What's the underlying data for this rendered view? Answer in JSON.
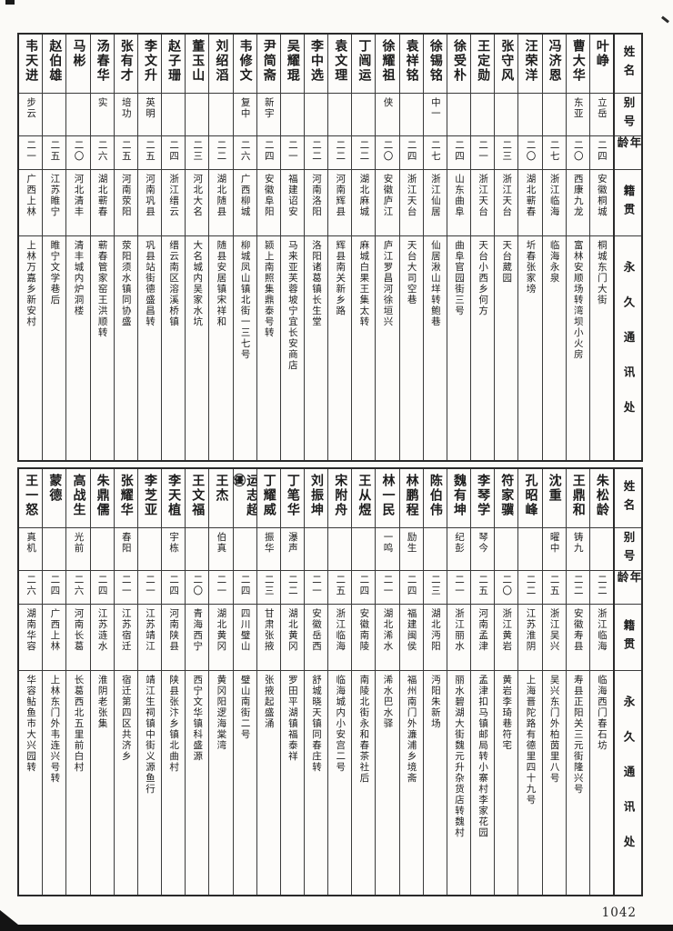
{
  "page_number": "1042",
  "headers": {
    "name": "姓名",
    "alias": "别号",
    "age": "年龄",
    "native": "籍贯",
    "address": "永久通讯处"
  },
  "table_top": {
    "entries": [
      {
        "name": "叶峥",
        "alias": "立岳",
        "age": "二四",
        "native_place": "安徽桐城",
        "address": "桐城东门大街"
      },
      {
        "name": "曹大华",
        "alias": "东亚",
        "age": "二〇",
        "native_place": "西康九龙",
        "address": "富林安顺场转湾坝小火房"
      },
      {
        "name": "冯济恩",
        "alias": "",
        "age": "二七",
        "native_place": "浙江临海",
        "address": "临海永泉"
      },
      {
        "name": "汪荣洋",
        "alias": "",
        "age": "二〇",
        "native_place": "湖北蕲春",
        "address": "圻春张家塝"
      },
      {
        "name": "张守风",
        "alias": "",
        "age": "二三",
        "native_place": "浙江天台",
        "address": "天台葳园"
      },
      {
        "name": "王定勋",
        "alias": "",
        "age": "二一",
        "native_place": "浙江天台",
        "address": "天台小西乡何方"
      },
      {
        "name": "徐受朴",
        "alias": "",
        "age": "二四",
        "native_place": "山东曲阜",
        "address": "曲阜官园街三号"
      },
      {
        "name": "徐锡铭",
        "alias": "中一",
        "age": "二七",
        "native_place": "浙江仙居",
        "address": "仙居湫山垟转鲍巷"
      },
      {
        "name": "袁祥铭",
        "alias": "",
        "age": "二四",
        "native_place": "浙江天台",
        "address": "天台大司空巷"
      },
      {
        "name": "徐耀祖",
        "alias": "侠",
        "age": "二〇",
        "native_place": "安徽庐江",
        "address": "庐江罗昌河徐垣兴"
      },
      {
        "name": "丁闿运",
        "alias": "",
        "age": "二二",
        "native_place": "湖北麻城",
        "address": "麻城白果王集太转"
      },
      {
        "name": "袁文理",
        "alias": "",
        "age": "二二",
        "native_place": "河南辉县",
        "address": "辉县南关新乡路"
      },
      {
        "name": "李中选",
        "alias": "",
        "age": "二二",
        "native_place": "河南洛阳",
        "address": "洛阳诸葛镇长生堂"
      },
      {
        "name": "吴耀琨",
        "alias": "",
        "age": "二一",
        "native_place": "福建诏安",
        "address": "马来亚芙蓉坡宁宜长安商店"
      },
      {
        "name": "尹简斋",
        "alias": "新宇",
        "age": "二四",
        "native_place": "安徽阜阳",
        "address": "颍上南照集鼎泰号转"
      },
      {
        "name": "韦修文",
        "alias": "复中",
        "age": "二六",
        "native_place": "广西柳城",
        "address": "柳城凤山镇北街一三七号"
      },
      {
        "name": "刘绍滔",
        "alias": "",
        "age": "二二",
        "native_place": "湖北随县",
        "address": "随县安居镇宋祥和"
      },
      {
        "name": "董玉山",
        "alias": "",
        "age": "二三",
        "native_place": "河北大名",
        "address": "大名城内吴家水坑"
      },
      {
        "name": "赵子珊",
        "alias": "",
        "age": "二四",
        "native_place": "浙江缙云",
        "address": "缙云南区溶溪桥镇"
      },
      {
        "name": "李文升",
        "alias": "英明",
        "age": "二五",
        "native_place": "河南巩县",
        "address": "巩县站街德盛昌转"
      },
      {
        "name": "张有才",
        "alias": "培功",
        "age": "二五",
        "native_place": "河南荥阳",
        "address": "荥阳须水镇同协盛"
      },
      {
        "name": "汤春华",
        "alias": "实",
        "age": "二六",
        "native_place": "湖北蕲春",
        "address": "蕲春管家窑王洪顺转"
      },
      {
        "name": "马彬",
        "alias": "",
        "age": "二〇",
        "native_place": "河北清丰",
        "address": "清丰城内炉洞楼"
      },
      {
        "name": "赵伯雄",
        "alias": "",
        "age": "二五",
        "native_place": "江苏睢宁",
        "address": "睢宁文学巷后"
      },
      {
        "name": "韦天进",
        "alias": "步云",
        "age": "二一",
        "native_place": "广西上林",
        "address": "上林万嘉乡新安村"
      }
    ]
  },
  "table_bottom": {
    "entries": [
      {
        "name": "朱松龄",
        "alias": "",
        "age": "二二",
        "native_place": "浙江临海",
        "address": "临海西门春石坊"
      },
      {
        "name": "王鼎和",
        "alias": "铸九",
        "age": "二二",
        "native_place": "安徽寿县",
        "address": "寿县正阳关三元街隆兴号"
      },
      {
        "name": "沈重",
        "alias": "曜中",
        "age": "二五",
        "native_place": "浙江吴兴",
        "address": "吴兴东门外柏茵里八号"
      },
      {
        "name": "孔昭峰",
        "alias": "",
        "age": "二二",
        "native_place": "江苏淮阴",
        "address": "上海晋陀路有德里四十九号"
      },
      {
        "name": "符家骥",
        "alias": "",
        "age": "二〇",
        "native_place": "浙江黄岩",
        "address": "黄岩李琦巷符宅"
      },
      {
        "name": "李琴学",
        "alias": "琴今",
        "age": "二五",
        "native_place": "河南孟津",
        "address": "孟津扣马镇邮局转小寨村李家花园"
      },
      {
        "name": "魏有坤",
        "alias": "纪彭",
        "age": "二一",
        "native_place": "浙江丽水",
        "address": "丽水碧湖大街魏元升杂货店转魏村"
      },
      {
        "name": "陈伯伟",
        "alias": "",
        "age": "二三",
        "native_place": "湖北沔阳",
        "address": "沔阳朱新场"
      },
      {
        "name": "林鹏程",
        "alias": "励生",
        "age": "二四",
        "native_place": "福建闽侯",
        "address": "福州南门外濂浦乡境斋"
      },
      {
        "name": "林一民",
        "alias": "一鸣",
        "age": "二一",
        "native_place": "湖北浠水",
        "address": "浠水巴水驿"
      },
      {
        "name": "王从煜",
        "alias": "",
        "age": "二四",
        "native_place": "安徽南陵",
        "address": "南陵北街永和春茶社后"
      },
      {
        "name": "宋附舟",
        "alias": "",
        "age": "二五",
        "native_place": "浙江临海",
        "address": "临海城内小安宫二号"
      },
      {
        "name": "刘振坤",
        "alias": "",
        "age": "二一",
        "native_place": "安徽岳西",
        "address": "舒城晓天镇同春庄转"
      },
      {
        "name": "丁笔华",
        "alias": "瀑声",
        "age": "二二",
        "native_place": "湖北黄冈",
        "address": "罗田平湖镇福泰祥"
      },
      {
        "name": "丁耀威",
        "alias": "振华",
        "age": "二三",
        "native_place": "甘肃张掖",
        "address": "张掖起盛涌"
      },
      {
        "name": "运志超㊝",
        "alias": "",
        "age": "二四",
        "native_place": "四川璧山",
        "address": "璧山南街二号"
      },
      {
        "name": "王杰",
        "alias": "伯真",
        "age": "二一",
        "native_place": "湖北黄冈",
        "address": "黄冈阳逻海棠湾"
      },
      {
        "name": "王文福",
        "alias": "",
        "age": "二〇",
        "native_place": "青海西宁",
        "address": "西宁文华镇科盛源"
      },
      {
        "name": "李天植",
        "alias": "宇栋",
        "age": "二四",
        "native_place": "河南陕县",
        "address": "陕县张汴乡镇北曲村"
      },
      {
        "name": "李芝亚",
        "alias": "",
        "age": "二一",
        "native_place": "江苏靖江",
        "address": "靖江生祠镇中街义源鱼行"
      },
      {
        "name": "张耀华",
        "alias": "春阳",
        "age": "二一",
        "native_place": "江苏宿迁",
        "address": "宿迁第四区共济乡"
      },
      {
        "name": "朱鼎儒",
        "alias": "",
        "age": "二四",
        "native_place": "江苏涟水",
        "address": "淮阴老张集"
      },
      {
        "name": "高战生",
        "alias": "光前",
        "age": "二六",
        "native_place": "河南长葛",
        "address": "长葛西北五里前白村"
      },
      {
        "name": "蒙德",
        "alias": "",
        "age": "二四",
        "native_place": "广西上林",
        "address": "上林东门外韦连兴号转"
      },
      {
        "name": "王一怒",
        "alias": "真机",
        "age": "二六",
        "native_place": "湖南华容",
        "address": "华容鲇鱼市大兴园转"
      }
    ]
  }
}
